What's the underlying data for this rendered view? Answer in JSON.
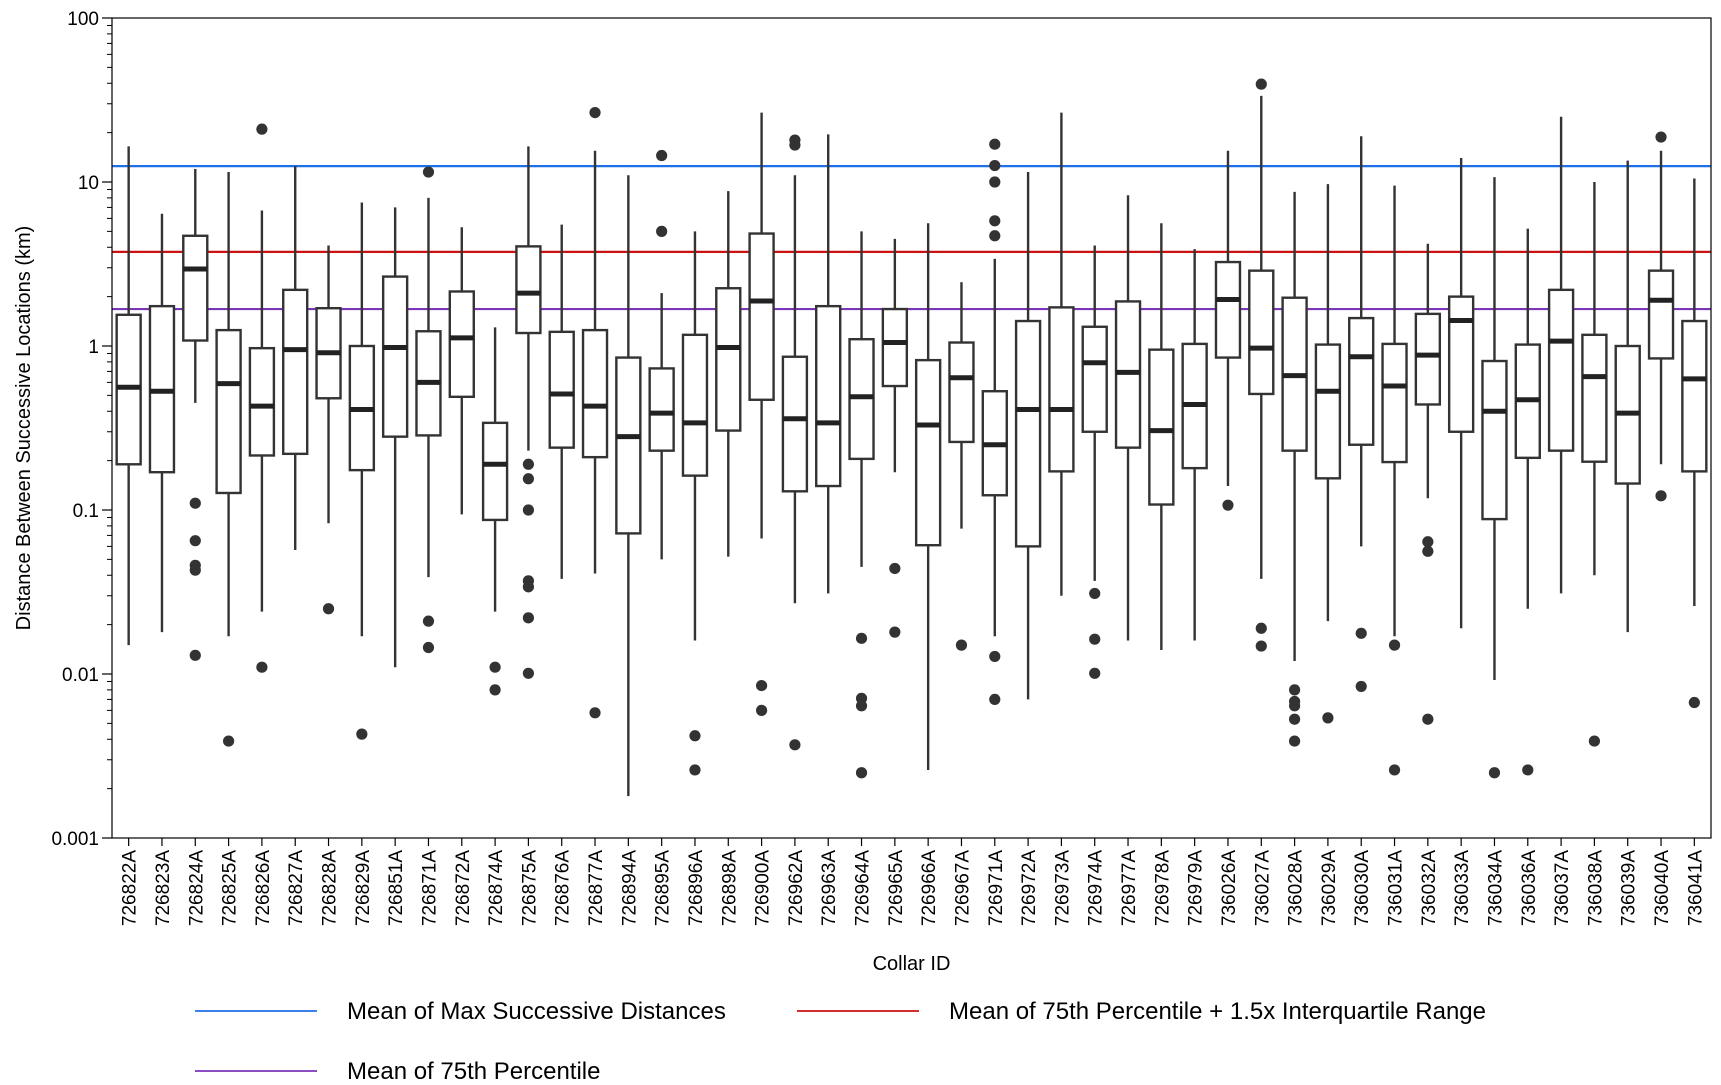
{
  "chart_data": {
    "type": "box",
    "xlabel": "Collar ID",
    "ylabel": "Distance Between Successive Locations (km)",
    "yscale": "log",
    "ylim": [
      0.001,
      100
    ],
    "yticks": [
      {
        "value": 0.001,
        "label": "0.001"
      },
      {
        "value": 0.01,
        "label": "0.01"
      },
      {
        "value": 0.1,
        "label": "0.1"
      },
      {
        "value": 1,
        "label": "1"
      },
      {
        "value": 10,
        "label": "10"
      },
      {
        "value": 100,
        "label": "100"
      }
    ],
    "grid": false,
    "legend_position": "bottom",
    "reference_lines": [
      {
        "name": "Mean of Max Successive Distances",
        "value": 12.5,
        "color": "#1f6fe8"
      },
      {
        "name": "Mean of 75th Percentile + 1.5x Interquartile Range",
        "value": 3.75,
        "color": "#cc1111"
      },
      {
        "name": "Mean of 75th Percentile",
        "value": 1.68,
        "color": "#7a35b8"
      }
    ],
    "boxes": [
      {
        "id": "726822A",
        "low": 0.015,
        "q1": 0.19,
        "median": 0.56,
        "q3": 1.55,
        "high": 16.5,
        "outliers": []
      },
      {
        "id": "726823A",
        "low": 0.018,
        "q1": 0.17,
        "median": 0.53,
        "q3": 1.75,
        "high": 6.4,
        "outliers": []
      },
      {
        "id": "726824A",
        "low": 0.45,
        "q1": 1.08,
        "median": 2.95,
        "q3": 4.7,
        "high": 12.0,
        "outliers": [
          0.11,
          0.065,
          0.046,
          0.043,
          0.013
        ]
      },
      {
        "id": "726825A",
        "low": 0.017,
        "q1": 0.127,
        "median": 0.59,
        "q3": 1.25,
        "high": 11.5,
        "outliers": [
          0.0039
        ]
      },
      {
        "id": "726826A",
        "low": 0.024,
        "q1": 0.215,
        "median": 0.43,
        "q3": 0.97,
        "high": 6.7,
        "outliers": [
          21.0,
          0.011
        ]
      },
      {
        "id": "726827A",
        "low": 0.057,
        "q1": 0.22,
        "median": 0.95,
        "q3": 2.2,
        "high": 12.5,
        "outliers": []
      },
      {
        "id": "726828A",
        "low": 0.083,
        "q1": 0.48,
        "median": 0.91,
        "q3": 1.7,
        "high": 4.1,
        "outliers": [
          0.025
        ]
      },
      {
        "id": "726829A",
        "low": 0.017,
        "q1": 0.175,
        "median": 0.41,
        "q3": 1.0,
        "high": 7.5,
        "outliers": [
          0.0043
        ]
      },
      {
        "id": "726851A",
        "low": 0.011,
        "q1": 0.28,
        "median": 0.98,
        "q3": 2.65,
        "high": 7.0,
        "outliers": []
      },
      {
        "id": "726871A",
        "low": 0.039,
        "q1": 0.285,
        "median": 0.6,
        "q3": 1.23,
        "high": 8.0,
        "outliers": [
          11.5,
          0.021,
          0.0145
        ]
      },
      {
        "id": "726872A",
        "low": 0.094,
        "q1": 0.49,
        "median": 1.12,
        "q3": 2.15,
        "high": 5.3,
        "outliers": []
      },
      {
        "id": "726874A",
        "low": 0.024,
        "q1": 0.087,
        "median": 0.19,
        "q3": 0.34,
        "high": 1.3,
        "outliers": [
          0.011,
          0.008
        ]
      },
      {
        "id": "726875A",
        "low": 0.23,
        "q1": 1.2,
        "median": 2.1,
        "q3": 4.05,
        "high": 16.5,
        "outliers": [
          0.19,
          0.155,
          0.1,
          0.037,
          0.034,
          0.022,
          0.0101
        ]
      },
      {
        "id": "726876A",
        "low": 0.038,
        "q1": 0.24,
        "median": 0.51,
        "q3": 1.22,
        "high": 5.5,
        "outliers": []
      },
      {
        "id": "726877A",
        "low": 0.041,
        "q1": 0.21,
        "median": 0.43,
        "q3": 1.25,
        "high": 15.5,
        "outliers": [
          26.5,
          0.0058
        ]
      },
      {
        "id": "726894A",
        "low": 0.0018,
        "q1": 0.072,
        "median": 0.28,
        "q3": 0.85,
        "high": 11.0,
        "outliers": []
      },
      {
        "id": "726895A",
        "low": 0.05,
        "q1": 0.23,
        "median": 0.39,
        "q3": 0.73,
        "high": 2.1,
        "outliers": [
          14.5,
          5.0
        ]
      },
      {
        "id": "726896A",
        "low": 0.016,
        "q1": 0.162,
        "median": 0.34,
        "q3": 1.17,
        "high": 5.0,
        "outliers": [
          0.0042,
          0.0026
        ]
      },
      {
        "id": "726898A",
        "low": 0.052,
        "q1": 0.305,
        "median": 0.98,
        "q3": 2.25,
        "high": 8.8,
        "outliers": []
      },
      {
        "id": "726900A",
        "low": 0.067,
        "q1": 0.47,
        "median": 1.88,
        "q3": 4.85,
        "high": 26.5,
        "outliers": [
          0.0085,
          0.006
        ]
      },
      {
        "id": "726962A",
        "low": 0.027,
        "q1": 0.13,
        "median": 0.36,
        "q3": 0.86,
        "high": 11.0,
        "outliers": [
          18.0,
          16.8,
          0.0037
        ]
      },
      {
        "id": "726963A",
        "low": 0.031,
        "q1": 0.14,
        "median": 0.34,
        "q3": 1.75,
        "high": 19.5,
        "outliers": []
      },
      {
        "id": "726964A",
        "low": 0.045,
        "q1": 0.205,
        "median": 0.49,
        "q3": 1.1,
        "high": 5.0,
        "outliers": [
          0.0165,
          0.0071,
          0.0064,
          0.0025
        ]
      },
      {
        "id": "726965A",
        "low": 0.17,
        "q1": 0.57,
        "median": 1.05,
        "q3": 1.68,
        "high": 4.5,
        "outliers": [
          0.044,
          0.018
        ]
      },
      {
        "id": "726966A",
        "low": 0.0026,
        "q1": 0.061,
        "median": 0.33,
        "q3": 0.82,
        "high": 5.6,
        "outliers": []
      },
      {
        "id": "726967A",
        "low": 0.077,
        "q1": 0.26,
        "median": 0.64,
        "q3": 1.05,
        "high": 2.45,
        "outliers": [
          0.015
        ]
      },
      {
        "id": "726971A",
        "low": 0.017,
        "q1": 0.123,
        "median": 0.25,
        "q3": 0.53,
        "high": 3.4,
        "outliers": [
          17.0,
          12.6,
          10.0,
          5.8,
          4.7,
          0.0128,
          0.007
        ]
      },
      {
        "id": "726972A",
        "low": 0.007,
        "q1": 0.06,
        "median": 0.41,
        "q3": 1.42,
        "high": 11.5,
        "outliers": []
      },
      {
        "id": "726973A",
        "low": 0.03,
        "q1": 0.172,
        "median": 0.41,
        "q3": 1.72,
        "high": 26.5,
        "outliers": []
      },
      {
        "id": "726974A",
        "low": 0.037,
        "q1": 0.3,
        "median": 0.79,
        "q3": 1.31,
        "high": 4.1,
        "outliers": [
          0.031,
          0.0163,
          0.0101
        ]
      },
      {
        "id": "726977A",
        "low": 0.016,
        "q1": 0.24,
        "median": 0.69,
        "q3": 1.87,
        "high": 8.3,
        "outliers": []
      },
      {
        "id": "726978A",
        "low": 0.014,
        "q1": 0.108,
        "median": 0.305,
        "q3": 0.95,
        "high": 5.6,
        "outliers": []
      },
      {
        "id": "726979A",
        "low": 0.016,
        "q1": 0.18,
        "median": 0.44,
        "q3": 1.03,
        "high": 3.9,
        "outliers": []
      },
      {
        "id": "736026A",
        "low": 0.14,
        "q1": 0.85,
        "median": 1.92,
        "q3": 3.25,
        "high": 15.5,
        "outliers": [
          0.107
        ]
      },
      {
        "id": "736027A",
        "low": 0.038,
        "q1": 0.51,
        "median": 0.97,
        "q3": 2.88,
        "high": 33.5,
        "outliers": [
          39.5,
          0.019,
          0.0148
        ]
      },
      {
        "id": "736028A",
        "low": 0.012,
        "q1": 0.23,
        "median": 0.66,
        "q3": 1.97,
        "high": 8.7,
        "outliers": [
          0.008,
          0.0068,
          0.0064,
          0.0053,
          0.0039
        ]
      },
      {
        "id": "736029A",
        "low": 0.021,
        "q1": 0.156,
        "median": 0.53,
        "q3": 1.02,
        "high": 9.7,
        "outliers": [
          0.0054
        ]
      },
      {
        "id": "736030A",
        "low": 0.06,
        "q1": 0.25,
        "median": 0.86,
        "q3": 1.48,
        "high": 19.0,
        "outliers": [
          0.0177,
          0.0084
        ]
      },
      {
        "id": "736031A",
        "low": 0.017,
        "q1": 0.196,
        "median": 0.57,
        "q3": 1.03,
        "high": 9.5,
        "outliers": [
          0.015,
          0.0026
        ]
      },
      {
        "id": "736032A",
        "low": 0.118,
        "q1": 0.44,
        "median": 0.88,
        "q3": 1.57,
        "high": 4.2,
        "outliers": [
          0.064,
          0.056,
          0.0053
        ]
      },
      {
        "id": "736033A",
        "low": 0.019,
        "q1": 0.3,
        "median": 1.43,
        "q3": 2.0,
        "high": 14.0,
        "outliers": []
      },
      {
        "id": "736034A",
        "low": 0.0092,
        "q1": 0.088,
        "median": 0.4,
        "q3": 0.81,
        "high": 10.7,
        "outliers": [
          0.0025
        ]
      },
      {
        "id": "736036A",
        "low": 0.025,
        "q1": 0.208,
        "median": 0.47,
        "q3": 1.02,
        "high": 5.2,
        "outliers": [
          0.0026
        ]
      },
      {
        "id": "736037A",
        "low": 0.031,
        "q1": 0.23,
        "median": 1.07,
        "q3": 2.2,
        "high": 25.0,
        "outliers": []
      },
      {
        "id": "736038A",
        "low": 0.04,
        "q1": 0.197,
        "median": 0.65,
        "q3": 1.17,
        "high": 10.0,
        "outliers": [
          0.0039
        ]
      },
      {
        "id": "736039A",
        "low": 0.018,
        "q1": 0.145,
        "median": 0.39,
        "q3": 1.0,
        "high": 13.5,
        "outliers": []
      },
      {
        "id": "736040A",
        "low": 0.19,
        "q1": 0.84,
        "median": 1.9,
        "q3": 2.88,
        "high": 15.5,
        "outliers": [
          18.8,
          0.122
        ]
      },
      {
        "id": "736041A",
        "low": 0.026,
        "q1": 0.172,
        "median": 0.63,
        "q3": 1.42,
        "high": 10.5,
        "outliers": [
          0.0067
        ]
      }
    ]
  }
}
